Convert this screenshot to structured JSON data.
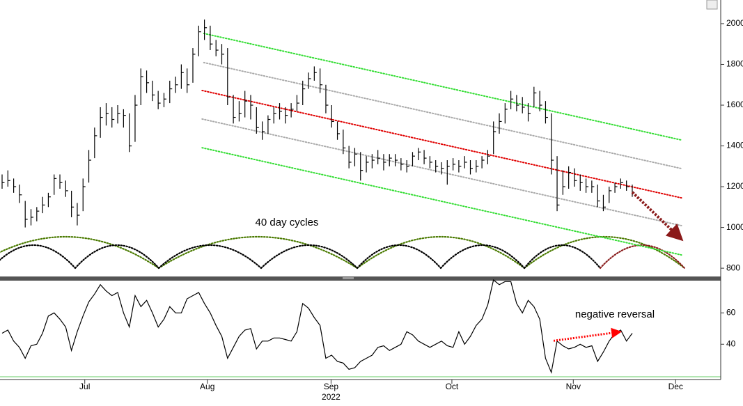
{
  "chart_data": [
    {
      "type": "ohlc",
      "high": [
        1260,
        1280,
        1240,
        1210,
        1130,
        1090,
        1100,
        1150,
        1170,
        1260,
        1260,
        1230,
        1180,
        1120,
        1240,
        1380,
        1490,
        1590,
        1610,
        1590,
        1600,
        1580,
        1560,
        1650,
        1780,
        1770,
        1720,
        1670,
        1660,
        1720,
        1740,
        1800,
        1780,
        1880,
        1990,
        2020,
        1990,
        1920,
        1900,
        1880,
        1650,
        1620,
        1670,
        1650,
        1590,
        1520,
        1550,
        1590,
        1610,
        1590,
        1610,
        1650,
        1720,
        1760,
        1790,
        1780,
        1700,
        1600,
        1520,
        1480,
        1400,
        1390,
        1370,
        1350,
        1360,
        1380,
        1360,
        1360,
        1360,
        1340,
        1330,
        1370,
        1390,
        1380,
        1350,
        1330,
        1320,
        1330,
        1340,
        1330,
        1350,
        1330,
        1330,
        1350,
        1380,
        1520,
        1560,
        1610,
        1670,
        1650,
        1640,
        1610,
        1690,
        1670,
        1620,
        1560,
        1350,
        1280,
        1300,
        1290,
        1260,
        1240,
        1230,
        1210,
        1160,
        1200,
        1220,
        1240,
        1230,
        1210
      ],
      "low": [
        1190,
        1200,
        1170,
        1120,
        1000,
        1010,
        1030,
        1070,
        1100,
        1160,
        1190,
        1150,
        1050,
        1010,
        1080,
        1220,
        1340,
        1440,
        1500,
        1490,
        1510,
        1490,
        1370,
        1420,
        1600,
        1660,
        1620,
        1580,
        1590,
        1610,
        1660,
        1680,
        1660,
        1710,
        1840,
        1920,
        1870,
        1840,
        1800,
        1600,
        1510,
        1520,
        1540,
        1530,
        1460,
        1430,
        1460,
        1510,
        1530,
        1510,
        1540,
        1570,
        1600,
        1680,
        1720,
        1660,
        1560,
        1490,
        1430,
        1360,
        1290,
        1300,
        1230,
        1270,
        1290,
        1310,
        1280,
        1300,
        1300,
        1280,
        1270,
        1300,
        1330,
        1310,
        1290,
        1270,
        1260,
        1210,
        1280,
        1270,
        1290,
        1260,
        1270,
        1290,
        1310,
        1360,
        1460,
        1510,
        1580,
        1570,
        1560,
        1520,
        1590,
        1570,
        1510,
        1260,
        1080,
        1160,
        1190,
        1200,
        1180,
        1170,
        1170,
        1100,
        1080,
        1120,
        1170,
        1190,
        1180,
        1150
      ],
      "close": [
        1220,
        1230,
        1200,
        1160,
        1040,
        1050,
        1080,
        1110,
        1150,
        1240,
        1220,
        1180,
        1100,
        1060,
        1200,
        1330,
        1450,
        1540,
        1560,
        1530,
        1560,
        1550,
        1400,
        1600,
        1740,
        1710,
        1650,
        1610,
        1630,
        1680,
        1700,
        1760,
        1700,
        1850,
        1960,
        1980,
        1900,
        1870,
        1850,
        1640,
        1540,
        1560,
        1620,
        1600,
        1490,
        1470,
        1530,
        1560,
        1570,
        1550,
        1580,
        1610,
        1680,
        1730,
        1760,
        1700,
        1600,
        1520,
        1460,
        1390,
        1320,
        1360,
        1280,
        1320,
        1330,
        1340,
        1320,
        1340,
        1330,
        1310,
        1300,
        1350,
        1370,
        1340,
        1320,
        1300,
        1290,
        1300,
        1310,
        1300,
        1320,
        1290,
        1300,
        1330,
        1350,
        1470,
        1520,
        1580,
        1630,
        1600,
        1590,
        1560,
        1660,
        1600,
        1540,
        1330,
        1110,
        1200,
        1270,
        1230,
        1220,
        1200,
        1200,
        1130,
        1100,
        1180,
        1200,
        1220,
        1200,
        1170
      ],
      "color": "#000000",
      "xlim": [
        0,
        124.3
      ],
      "ylim": [
        756,
        2116
      ],
      "yticks": [
        800,
        1000,
        1200,
        1400,
        1600,
        1800,
        2000
      ],
      "lines": [
        {
          "color": "#33dd33",
          "x": [
            34.9,
            117.5
          ],
          "values": [
            1952,
            1429
          ]
        },
        {
          "color": "#aaaaaa",
          "x": [
            34.9,
            117.5
          ],
          "values": [
            1809,
            1289
          ]
        },
        {
          "color": "#e00000",
          "x": [
            34.6,
            117.5
          ],
          "values": [
            1672,
            1145
          ]
        },
        {
          "color": "#aaaaaa",
          "x": [
            34.6,
            117.5
          ],
          "values": [
            1532,
            1009
          ]
        },
        {
          "color": "#33dd33",
          "x": [
            34.6,
            117.5
          ],
          "values": [
            1391,
            865
          ]
        }
      ],
      "arrow": {
        "color": "#8b1a1a",
        "x": [
          109,
          116.8
        ],
        "values": [
          1173,
          961
        ]
      },
      "annotation": "40 day cycles",
      "annotation_color": "#4a8a00"
    },
    {
      "type": "line",
      "values": [
        47,
        49,
        42,
        38,
        31,
        39,
        40,
        47,
        58,
        60,
        56,
        51,
        36,
        48,
        58,
        67,
        72,
        78,
        74,
        71,
        73,
        60,
        51,
        71,
        64,
        68,
        60,
        51,
        56,
        64,
        60,
        60,
        69,
        71,
        73,
        66,
        60,
        52,
        45,
        31,
        38,
        45,
        49,
        50,
        37,
        42,
        42,
        44,
        44,
        43,
        42,
        48,
        66,
        63,
        57,
        52,
        31,
        33,
        29,
        28,
        24,
        25,
        29,
        31,
        33,
        38,
        39,
        36,
        38,
        40,
        48,
        46,
        42,
        40,
        38,
        40,
        42,
        39,
        38,
        48,
        40,
        45,
        52,
        56,
        65,
        81,
        78,
        80,
        80,
        66,
        60,
        68,
        64,
        56,
        31,
        22,
        42,
        39,
        37,
        38,
        40,
        38,
        39,
        29,
        35,
        42,
        47,
        49,
        42,
        47
      ],
      "color": "#000000",
      "xlim": [
        0,
        124.3
      ],
      "ylim": [
        18.8,
        81
      ],
      "yticks": [
        40,
        60
      ],
      "xticks": [
        {
          "value": 14.3,
          "label": "Jul"
        },
        {
          "value": 35.5,
          "label": "Aug"
        },
        {
          "value": 56.9,
          "label": "Sep"
        },
        {
          "value": 77.8,
          "label": "Oct"
        },
        {
          "value": 98.8,
          "label": "Nov"
        },
        {
          "value": 116.5,
          "label": "Dec"
        }
      ],
      "xlabel": "2022",
      "arrow": {
        "color": "#ff0000",
        "x": [
          95.4,
          106.3
        ],
        "values": [
          42.2,
          47.6
        ]
      },
      "annotation": "negative reversal",
      "annotation_color": "#e00000"
    }
  ]
}
